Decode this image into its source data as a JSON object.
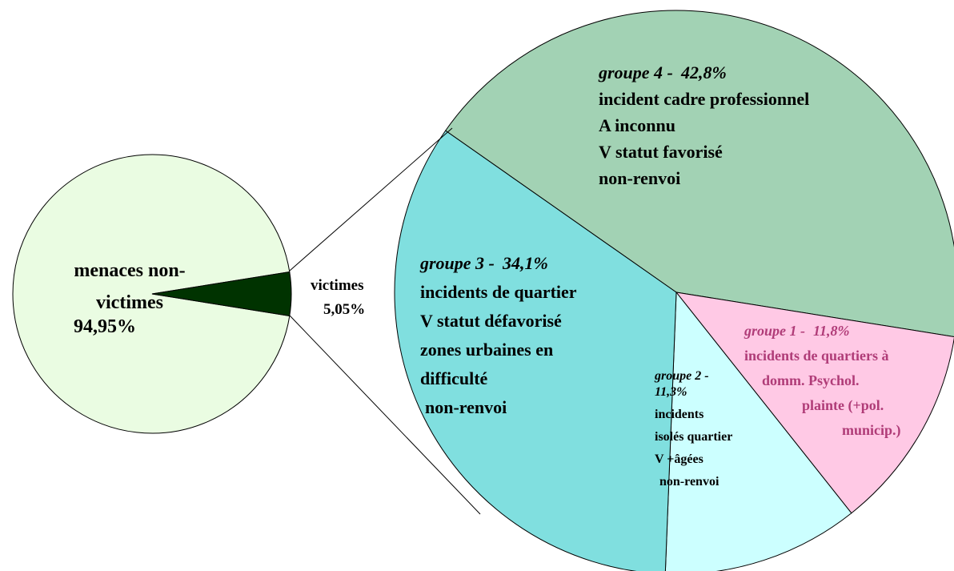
{
  "chart_data": [
    {
      "type": "pie",
      "categories": [
        "menaces non-victimes",
        "victimes"
      ],
      "values": [
        94.95,
        5.05
      ],
      "value_labels": [
        "94,95%",
        "5,05%"
      ],
      "colors": [
        "#eafce2",
        "#003300"
      ]
    },
    {
      "type": "pie",
      "categories": [
        "groupe 4 -",
        "groupe 1 -",
        "groupe 2 -",
        "groupe 3 -"
      ],
      "values": [
        42.8,
        11.8,
        11.3,
        34.1
      ],
      "value_labels": [
        "42,8%",
        "11,8%",
        "11,3%",
        "34,1%"
      ],
      "colors": [
        "#a2d2b4",
        "#ffc9e5",
        "#ccffff",
        "#80dfdf"
      ],
      "details": [
        [
          "incident cadre professionnel",
          "A inconnu",
          "V statut favorisé",
          "non-renvoi"
        ],
        [
          "incidents de quartiers à",
          "domm. Psychol.",
          "plainte (+pol.",
          "municip.)"
        ],
        [
          "incidents",
          "isolés quartier",
          "V +âgées",
          "non-renvoi"
        ],
        [
          "incidents de quartier",
          "V statut défavorisé",
          "zones urbaines en",
          "difficulté",
          "non-renvoi"
        ]
      ]
    }
  ]
}
